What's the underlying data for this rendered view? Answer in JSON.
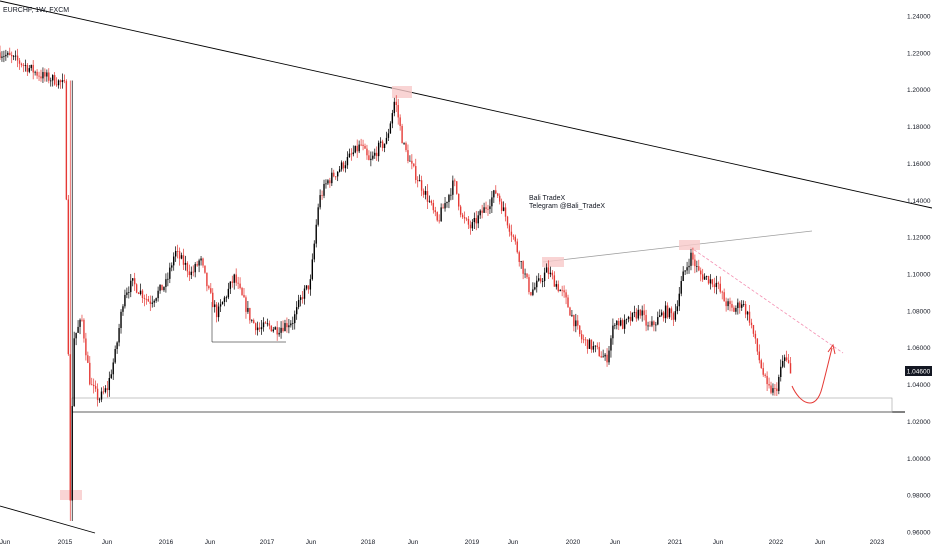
{
  "header": {
    "title": "EURCHF, 1W, FXCM"
  },
  "annotation": {
    "line1": "Bali TradeX",
    "line2": "Telegram @Bali_TradeX"
  },
  "colors": {
    "up": "#000000",
    "down": "#e53935",
    "price_tag_bg": "#131722",
    "resistance": "#9e9e9e",
    "trend_dashed": "#f48fb1",
    "highlight": "#f8c9c9",
    "forecast_arrow": "#e53935"
  },
  "chart_data": {
    "type": "candlestick",
    "symbol": "EURCHF",
    "interval": "1W",
    "source": "FXCM",
    "title": "EURCHF, 1W, FXCM",
    "ylim": [
      0.955,
      1.245
    ],
    "y_ticks": [
      "1.24000",
      "1.22000",
      "1.20000",
      "1.18000",
      "1.16000",
      "1.14000",
      "1.12000",
      "1.10000",
      "1.08000",
      "1.06000",
      "1.04000",
      "1.02000",
      "1.00000",
      "0.98000",
      "0.96000"
    ],
    "x_ticks": [
      "Jun",
      "2015",
      "Jun",
      "2016",
      "Jun",
      "2017",
      "Jun",
      "2018",
      "Jun",
      "2019",
      "Jun",
      "2020",
      "Jun",
      "2021",
      "Jun",
      "2022",
      "Jun",
      "2023"
    ],
    "last_price_label": "1.04600",
    "last_price": 1.046,
    "grid": false,
    "price_path": [
      [
        "2014-05",
        1.221
      ],
      [
        "2014-08",
        1.214
      ],
      [
        "2014-10",
        1.208
      ],
      [
        "2014-12",
        1.205
      ],
      [
        "2015-01",
        1.202
      ],
      [
        "2015-01-20",
        0.975
      ],
      [
        "2015-02",
        1.065
      ],
      [
        "2015-03",
        1.075
      ],
      [
        "2015-04",
        1.04
      ],
      [
        "2015-05",
        1.032
      ],
      [
        "2015-06",
        1.038
      ],
      [
        "2015-07",
        1.058
      ],
      [
        "2015-08",
        1.09
      ],
      [
        "2015-09",
        1.095
      ],
      [
        "2015-11",
        1.085
      ],
      [
        "2016-01",
        1.095
      ],
      [
        "2016-02",
        1.112
      ],
      [
        "2016-04",
        1.1
      ],
      [
        "2016-05",
        1.108
      ],
      [
        "2016-06",
        1.09
      ],
      [
        "2016-07",
        1.078
      ],
      [
        "2016-09",
        1.098
      ],
      [
        "2016-11",
        1.075
      ],
      [
        "2016-12",
        1.07
      ],
      [
        "2017-01",
        1.072
      ],
      [
        "2017-02",
        1.07
      ],
      [
        "2017-04",
        1.075
      ],
      [
        "2017-05",
        1.088
      ],
      [
        "2017-06",
        1.095
      ],
      [
        "2017-07",
        1.14
      ],
      [
        "2017-08",
        1.15
      ],
      [
        "2017-10",
        1.16
      ],
      [
        "2017-12",
        1.17
      ],
      [
        "2018-01",
        1.16
      ],
      [
        "2018-02",
        1.168
      ],
      [
        "2018-03",
        1.172
      ],
      [
        "2018-04",
        1.195
      ],
      [
        "2018-05",
        1.17
      ],
      [
        "2018-06",
        1.158
      ],
      [
        "2018-08",
        1.14
      ],
      [
        "2018-09",
        1.128
      ],
      [
        "2018-11",
        1.15
      ],
      [
        "2018-12",
        1.13
      ],
      [
        "2019-01",
        1.125
      ],
      [
        "2019-03",
        1.138
      ],
      [
        "2019-04",
        1.145
      ],
      [
        "2019-06",
        1.12
      ],
      [
        "2019-08",
        1.09
      ],
      [
        "2019-09",
        1.095
      ],
      [
        "2019-10",
        1.102
      ],
      [
        "2019-11",
        1.095
      ],
      [
        "2019-12",
        1.088
      ],
      [
        "2020-02",
        1.065
      ],
      [
        "2020-04",
        1.058
      ],
      [
        "2020-05",
        1.053
      ],
      [
        "2020-06",
        1.075
      ],
      [
        "2020-07",
        1.072
      ],
      [
        "2020-09",
        1.08
      ],
      [
        "2020-10",
        1.07
      ],
      [
        "2020-12",
        1.08
      ],
      [
        "2021-01",
        1.077
      ],
      [
        "2021-02",
        1.098
      ],
      [
        "2021-03",
        1.11
      ],
      [
        "2021-04",
        1.1
      ],
      [
        "2021-06",
        1.095
      ],
      [
        "2021-07",
        1.085
      ],
      [
        "2021-08",
        1.08
      ],
      [
        "2021-09",
        1.085
      ],
      [
        "2021-10",
        1.075
      ],
      [
        "2021-11",
        1.055
      ],
      [
        "2021-12",
        1.038
      ],
      [
        "2022-01",
        1.036
      ],
      [
        "2022-02",
        1.055
      ],
      [
        "2022-03",
        1.046
      ]
    ],
    "levels": [
      {
        "name": "support",
        "y": 1.0235
      },
      {
        "name": "support-zone",
        "y_range": [
          1.031,
          1.0235
        ]
      },
      {
        "name": "range-floor-2016",
        "y": 1.0625
      }
    ]
  }
}
